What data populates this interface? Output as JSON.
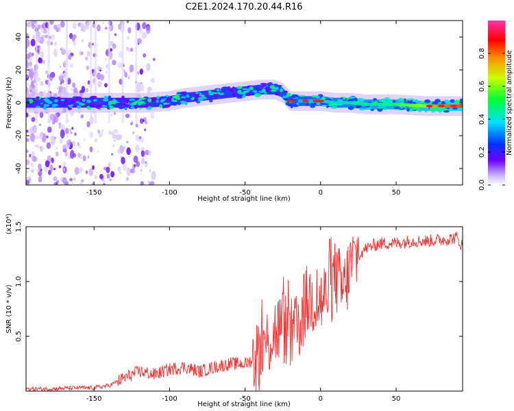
{
  "title": "C2E1.2024.170.20.44.R16",
  "chart_data": [
    {
      "type": "heatmap",
      "xlabel": "Height of straight line (km)",
      "ylabel": "Frequency (Hz)",
      "xlim": [
        -195,
        94
      ],
      "ylim": [
        -50,
        50
      ],
      "xticks": [
        -150,
        -100,
        -50,
        0,
        50
      ],
      "yticks": [
        -40,
        -20,
        0,
        20,
        40
      ],
      "colorbar": {
        "label": "Normalized spectral amplitude",
        "range": [
          0.0,
          1.0
        ],
        "ticks": [
          "0.0",
          "0.2",
          "0.4",
          "0.6",
          "0.8"
        ],
        "colors": [
          "#ffffff",
          "#6a00ff",
          "#0033ff",
          "#00e0ff",
          "#00ff33",
          "#ccff00",
          "#ff8800",
          "#ff0000",
          "#ff33aa"
        ]
      },
      "ridge_center_hz": {
        "x": [
          -195,
          -170,
          -150,
          -130,
          -115,
          -100,
          -90,
          -80,
          -70,
          -60,
          -50,
          -40,
          -30,
          -25,
          -20,
          -10,
          0,
          10,
          20,
          30,
          50,
          70,
          90,
          94
        ],
        "y": [
          0,
          0,
          0,
          0,
          0,
          1,
          3,
          4,
          5,
          6,
          7,
          8,
          8,
          6,
          1,
          1,
          1,
          0,
          0,
          -1,
          -1,
          -2,
          -2,
          -2
        ]
      }
    },
    {
      "type": "line",
      "series": [
        {
          "color": "#ee3333",
          "x": [
            -195,
            -180,
            -160,
            -150,
            -140,
            -130,
            -120,
            -110,
            -100,
            -90,
            -80,
            -70,
            -60,
            -50,
            -45,
            -40,
            -35,
            -30,
            -25,
            -20,
            -15,
            -10,
            -5,
            0,
            5,
            10,
            15,
            20,
            25,
            30,
            35,
            40,
            50,
            60,
            70,
            80,
            90,
            94
          ],
          "values": [
            0.02,
            0.02,
            0.03,
            0.03,
            0.05,
            0.12,
            0.18,
            0.15,
            0.2,
            0.22,
            0.18,
            0.22,
            0.25,
            0.25,
            0.28,
            0.35,
            0.45,
            0.55,
            0.6,
            0.5,
            0.55,
            0.8,
            0.85,
            0.8,
            0.9,
            1.05,
            0.9,
            1.15,
            1.25,
            1.3,
            1.33,
            1.35,
            1.35,
            1.37,
            1.37,
            1.38,
            1.4,
            1.32
          ]
        }
      ],
      "xlabel": "Height of straight line (km)",
      "ylabel": "SNR (10 * v/v)",
      "scale_label": "(x10⁴)",
      "xlim": [
        -195,
        94
      ],
      "ylim": [
        0,
        1.5
      ],
      "xticks": [
        -150,
        -100,
        -50,
        0,
        50
      ],
      "yticks": [
        "0.5",
        "1.0",
        "1.5"
      ]
    }
  ]
}
